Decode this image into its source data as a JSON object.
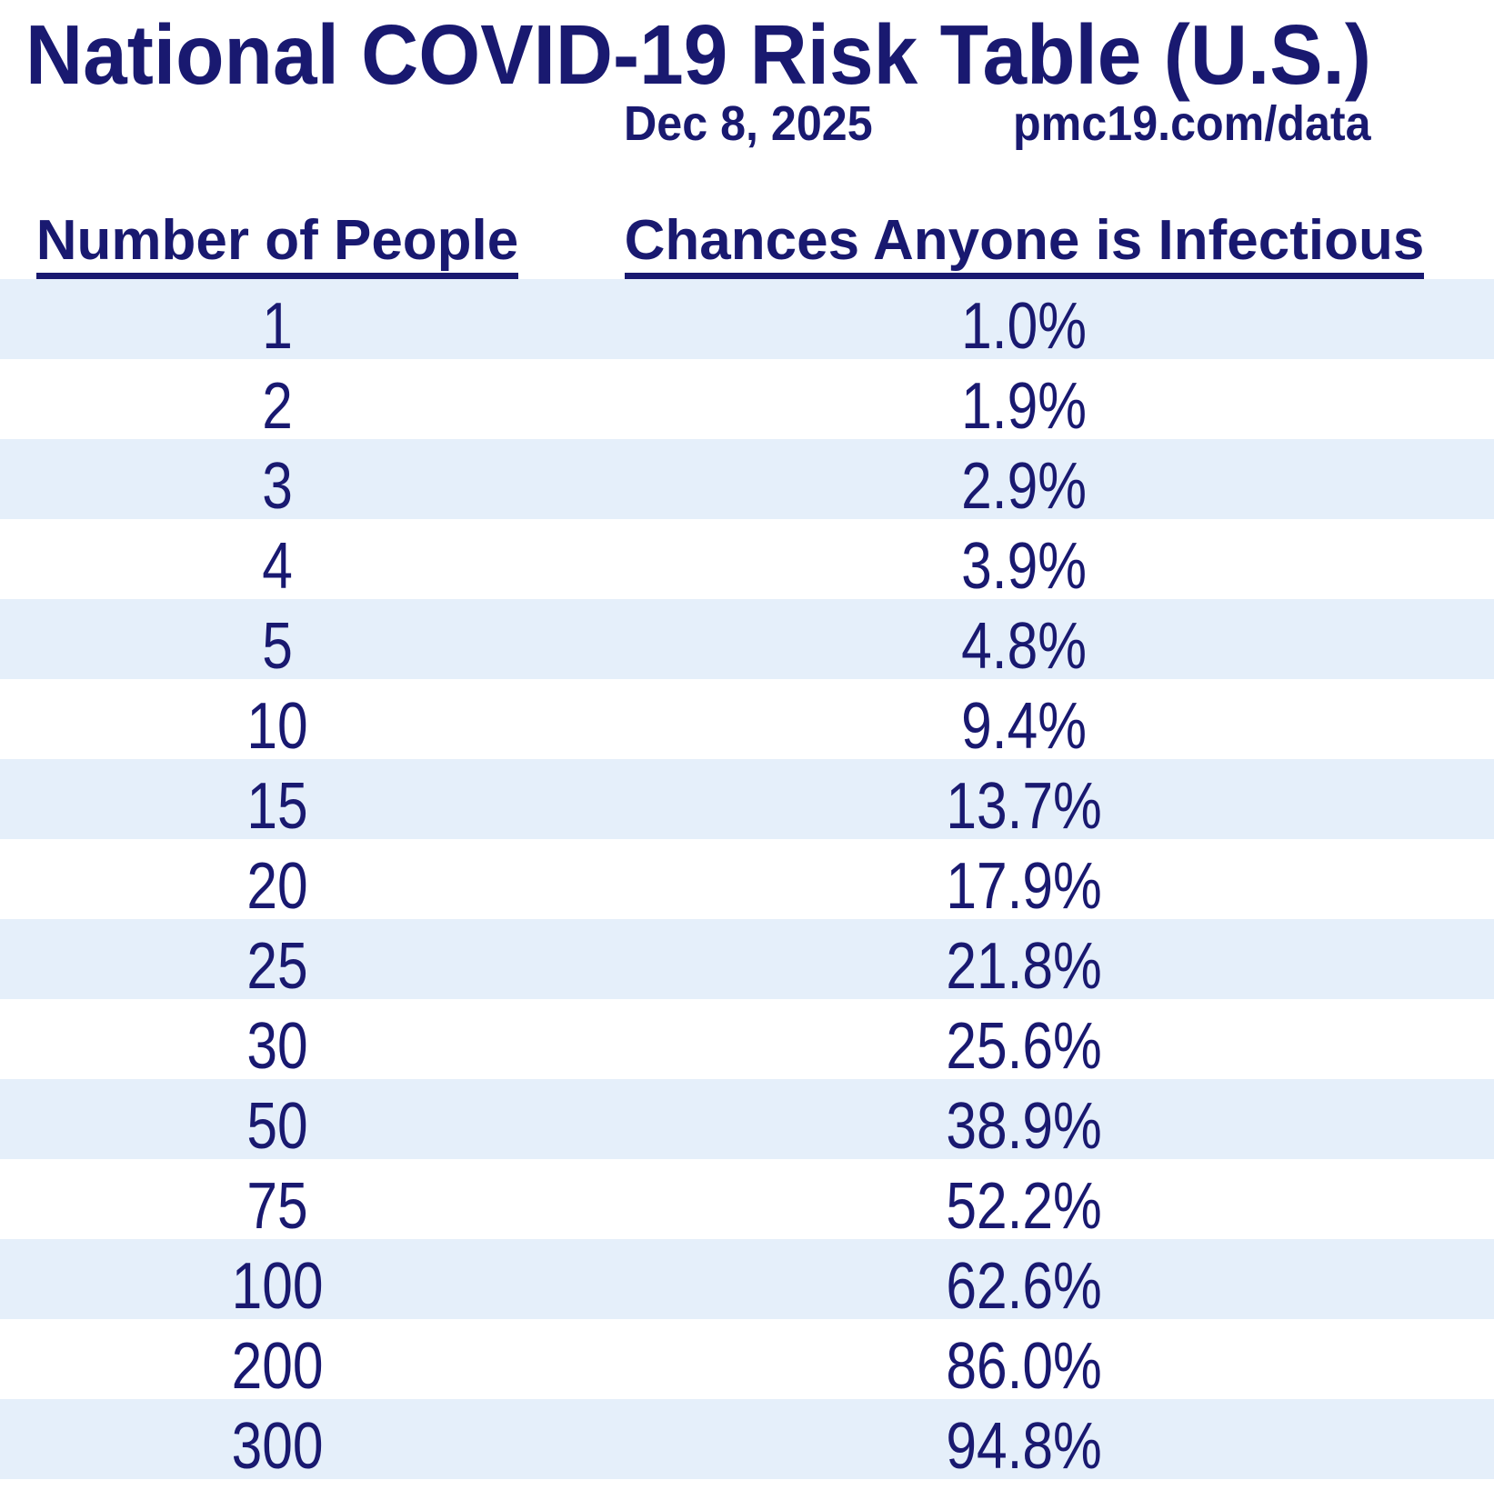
{
  "header": {
    "title": "National COVID-19 Risk Table (U.S.)",
    "date": "Dec 8, 2025",
    "url": "pmc19.com/data"
  },
  "table": {
    "col1_header": "Number of People",
    "col2_header": "Chances Anyone is Infectious",
    "rows": [
      {
        "people": "1",
        "chance": "1.0%"
      },
      {
        "people": "2",
        "chance": "1.9%"
      },
      {
        "people": "3",
        "chance": "2.9%"
      },
      {
        "people": "4",
        "chance": "3.9%"
      },
      {
        "people": "5",
        "chance": "4.8%"
      },
      {
        "people": "10",
        "chance": "9.4%"
      },
      {
        "people": "15",
        "chance": "13.7%"
      },
      {
        "people": "20",
        "chance": "17.9%"
      },
      {
        "people": "25",
        "chance": "21.8%"
      },
      {
        "people": "30",
        "chance": "25.6%"
      },
      {
        "people": "50",
        "chance": "38.9%"
      },
      {
        "people": "75",
        "chance": "52.2%"
      },
      {
        "people": "100",
        "chance": "62.6%"
      },
      {
        "people": "200",
        "chance": "86.0%"
      },
      {
        "people": "300",
        "chance": "94.8%"
      }
    ]
  },
  "colors": {
    "text_navy": "#191970",
    "row_stripe": "#e5effa",
    "background": "#ffffff"
  },
  "chart_data": {
    "type": "table",
    "title": "National COVID-19 Risk Table (U.S.)",
    "subtitle_date": "Dec 8, 2025",
    "source": "pmc19.com/data",
    "columns": [
      "Number of People",
      "Chances Anyone is Infectious"
    ],
    "rows": [
      [
        1,
        "1.0%"
      ],
      [
        2,
        "1.9%"
      ],
      [
        3,
        "2.9%"
      ],
      [
        4,
        "3.9%"
      ],
      [
        5,
        "4.8%"
      ],
      [
        10,
        "9.4%"
      ],
      [
        15,
        "13.7%"
      ],
      [
        20,
        "17.9%"
      ],
      [
        25,
        "21.8%"
      ],
      [
        30,
        "25.6%"
      ],
      [
        50,
        "38.9%"
      ],
      [
        75,
        "52.2%"
      ],
      [
        100,
        "62.6%"
      ],
      [
        200,
        "86.0%"
      ],
      [
        300,
        "94.8%"
      ]
    ],
    "layout": {
      "zebra_striping": true,
      "first_row_striped": true,
      "header_underlined": true
    }
  }
}
